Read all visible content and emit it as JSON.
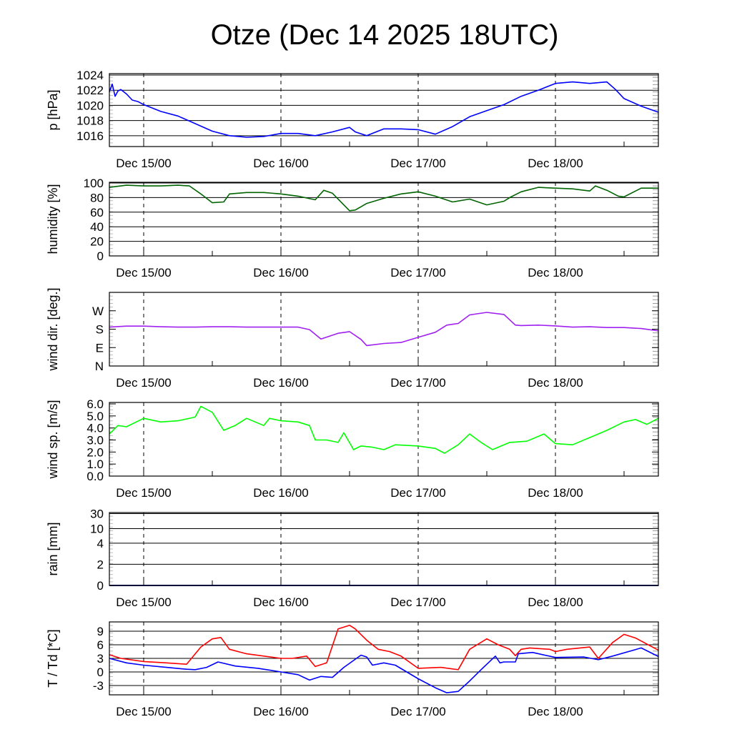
{
  "chart_data": {
    "title": "Otze (Dec 14 2025 18UTC)",
    "x_unit": "hours since Dec 14 18UTC",
    "xlim": [
      0,
      96
    ],
    "xtick_hours": [
      6,
      30,
      54,
      78
    ],
    "xtick_labels": [
      "Dec 15/00",
      "Dec 16/00",
      "Dec 17/00",
      "Dec 18/00"
    ],
    "panels": [
      {
        "type": "line",
        "ylabel": "p [hPa]",
        "ylim": [
          1014.57,
          1024.19
        ],
        "yticks": [
          1016,
          1018,
          1020,
          1022,
          1024
        ],
        "ytick_labels": [
          "1016",
          "1018",
          "1020",
          "1022",
          "1024"
        ],
        "grid": true,
        "series": [
          {
            "name": "pressure",
            "color": "#0000ff",
            "x": [
              0,
              0.5,
              1,
              1.5,
              2,
              3,
              4,
              5,
              6,
              7,
              9,
              12,
              15,
              18,
              21,
              24,
              27,
              30,
              33,
              36,
              39,
              42,
              43,
              45,
              48,
              51,
              54,
              57,
              60,
              63,
              66,
              69,
              72,
              75,
              78,
              81,
              84,
              87,
              88.5,
              90,
              93,
              96
            ],
            "y": [
              1021.8,
              1022.8,
              1021.2,
              1021.9,
              1022.1,
              1021.5,
              1020.7,
              1020.5,
              1020.1,
              1019.8,
              1019.2,
              1018.6,
              1017.6,
              1016.6,
              1016.0,
              1015.8,
              1015.9,
              1016.3,
              1016.3,
              1016.0,
              1016.5,
              1017.1,
              1016.5,
              1016.0,
              1016.9,
              1016.9,
              1016.8,
              1016.2,
              1017.2,
              1018.5,
              1019.3,
              1020.1,
              1021.2,
              1022.0,
              1022.9,
              1023.1,
              1022.9,
              1023.1,
              1022.1,
              1020.9,
              1019.9,
              1019.1
            ]
          }
        ]
      },
      {
        "type": "line",
        "ylabel": "humidity [%]",
        "ylim": [
          0,
          101
        ],
        "yticks": [
          0,
          20,
          40,
          60,
          80,
          100
        ],
        "ytick_labels": [
          "0",
          "20",
          "40",
          "60",
          "80",
          "100"
        ],
        "grid": true,
        "series": [
          {
            "name": "humidity",
            "color": "#006400",
            "x": [
              0,
              3,
              6,
              9,
              12,
              14,
              16,
              18,
              20,
              21,
              24,
              27,
              30,
              33,
              36,
              37.5,
              39,
              42,
              43,
              45,
              48,
              51,
              54,
              57,
              60,
              63,
              66,
              69,
              70,
              72,
              75,
              78,
              81,
              84,
              85,
              87,
              89,
              90,
              93,
              96
            ],
            "y": [
              94,
              97,
              96,
              96,
              97,
              96,
              85,
              73,
              74,
              85,
              87,
              87,
              85,
              82,
              77,
              90,
              86,
              62,
              63,
              72,
              79,
              85,
              88,
              82,
              74,
              78,
              70,
              75,
              80,
              88,
              94,
              93,
              92,
              89,
              96,
              90,
              82,
              81,
              93,
              93
            ]
          }
        ]
      },
      {
        "type": "line",
        "ylabel": "wind dir. [deg.]",
        "ylim": [
          0,
          360
        ],
        "yticks": [
          0,
          90,
          180,
          270
        ],
        "ytick_labels": [
          "N",
          "E",
          "S",
          "W"
        ],
        "grid": false,
        "series": [
          {
            "name": "wind direction",
            "color": "#a020f0",
            "x": [
              0,
              3,
              6,
              9,
              12,
              15,
              18,
              21,
              24,
              27,
              30,
              33,
              35,
              37,
              40,
              42,
              44,
              45,
              48,
              51,
              54,
              57,
              59,
              61,
              63,
              66,
              69,
              71,
              72,
              75,
              78,
              81,
              84,
              87,
              90,
              93,
              96
            ],
            "y": [
              190,
              195,
              195,
              192,
              190,
              190,
              192,
              192,
              190,
              190,
              190,
              190,
              178,
              132,
              160,
              168,
              130,
              100,
              110,
              115,
              140,
              165,
              200,
              208,
              250,
              262,
              252,
              200,
              198,
              200,
              196,
              190,
              192,
              188,
              188,
              183,
              172
            ]
          }
        ]
      },
      {
        "type": "line",
        "ylabel": "wind sp. [m/s]",
        "ylim": [
          0,
          6.12
        ],
        "yticks": [
          0,
          1,
          2,
          3,
          4,
          5,
          6
        ],
        "ytick_labels": [
          "0.0",
          "1.0",
          "2.0",
          "3.0",
          "4.0",
          "5.0",
          "6.0"
        ],
        "grid": false,
        "series": [
          {
            "name": "wind speed",
            "color": "#00ff00",
            "x": [
              0,
              1.5,
              3,
              6,
              9,
              12,
              15,
              16,
              18,
              20,
              22,
              24,
              27,
              28,
              30,
              33,
              35,
              36,
              38,
              40,
              41,
              42.7,
              44,
              46,
              48,
              50,
              54,
              57,
              58.6,
              61,
              63,
              65,
              67,
              70,
              73,
              76,
              78,
              81,
              84,
              87,
              90,
              92,
              94,
              96
            ],
            "y": [
              3.5,
              4.2,
              4.1,
              4.8,
              4.5,
              4.6,
              4.9,
              5.8,
              5.3,
              3.8,
              4.2,
              4.8,
              4.2,
              4.8,
              4.6,
              4.5,
              4.2,
              3.0,
              3.0,
              2.8,
              3.6,
              2.2,
              2.5,
              2.4,
              2.2,
              2.6,
              2.5,
              2.3,
              1.9,
              2.6,
              3.5,
              2.8,
              2.2,
              2.8,
              2.9,
              3.5,
              2.7,
              2.6,
              3.2,
              3.8,
              4.5,
              4.7,
              4.3,
              4.8
            ]
          }
        ]
      },
      {
        "type": "line",
        "ylabel": "rain [mm]",
        "ylim": [
          0,
          31
        ],
        "yticks": [
          0,
          2,
          4,
          10,
          30
        ],
        "ytick_labels": [
          "0",
          "2",
          "4",
          "10",
          "30"
        ],
        "grid": true,
        "series": [
          {
            "name": "rain",
            "color": "#00008b",
            "x": [
              0,
              96
            ],
            "y": [
              0,
              0
            ]
          }
        ]
      },
      {
        "type": "line",
        "ylabel": "T / Td [*C]",
        "ylim": [
          -5.06,
          11.05
        ],
        "yticks": [
          -3,
          0,
          3,
          6,
          9
        ],
        "ytick_labels": [
          "-3",
          "0",
          "3",
          "6",
          "9"
        ],
        "grid": true,
        "series": [
          {
            "name": "T",
            "color": "#ff0000",
            "x": [
              0,
              2,
              6,
              10,
              13.5,
              16,
              18,
              19.5,
              21,
              24,
              30,
              32,
              34.5,
              36,
              38,
              40,
              42,
              43,
              45,
              47,
              49,
              51,
              54,
              58,
              61,
              63,
              66,
              68,
              70,
              71,
              72,
              73.5,
              77,
              78,
              80,
              84,
              85.5,
              88,
              90,
              92,
              96
            ],
            "y": [
              3.8,
              3.0,
              2.3,
              2.0,
              1.7,
              5.5,
              7.3,
              7.6,
              5.0,
              4.0,
              3.0,
              3.0,
              3.5,
              1.2,
              2.0,
              9.5,
              10.3,
              9.5,
              7.0,
              5.0,
              4.5,
              3.5,
              0.8,
              1.0,
              0.5,
              5.0,
              7.3,
              6.0,
              5.0,
              3.6,
              5.0,
              5.3,
              5.0,
              4.5,
              5.0,
              5.5,
              3.0,
              6.5,
              8.3,
              7.5,
              4.8
            ]
          },
          {
            "name": "Td",
            "color": "#0000ff",
            "x": [
              0,
              3,
              6,
              10,
              13.5,
              15,
              17,
              19,
              22,
              26,
              30,
              33,
              35,
              37,
              39,
              41,
              44,
              45,
              46,
              48,
              50,
              52,
              54,
              57,
              59,
              61,
              63,
              65,
              67.5,
              68.3,
              69,
              71,
              71.5,
              74,
              78,
              83,
              85.5,
              88,
              93,
              96
            ],
            "y": [
              3.0,
              2.0,
              1.5,
              1.0,
              0.6,
              0.5,
              1.0,
              2.2,
              1.3,
              0.8,
              0.0,
              -0.6,
              -1.8,
              -1.0,
              -1.2,
              1.0,
              3.7,
              3.3,
              1.5,
              2.0,
              1.5,
              0.0,
              -1.5,
              -3.5,
              -4.6,
              -4.3,
              -2.0,
              0.5,
              3.5,
              2.0,
              2.2,
              2.2,
              4.0,
              4.3,
              3.2,
              3.3,
              2.7,
              3.5,
              5.3,
              3.4
            ]
          }
        ]
      }
    ]
  }
}
